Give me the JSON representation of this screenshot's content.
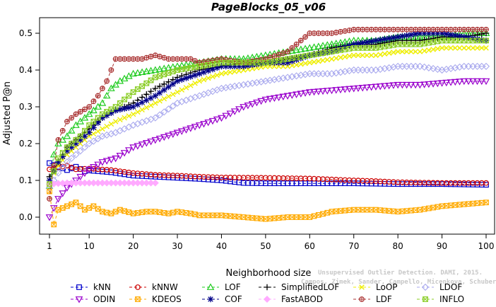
{
  "chart_data": {
    "type": "line",
    "title": "PageBlocks_05_v06",
    "xlabel": "Neighborhood size",
    "ylabel": "Adjusted P@n",
    "xlim": [
      1,
      100
    ],
    "ylim": [
      -0.04,
      0.54
    ],
    "xticks": [
      1,
      10,
      20,
      30,
      40,
      50,
      60,
      70,
      80,
      90,
      100
    ],
    "yticks": [
      0.0,
      0.1,
      0.2,
      0.3,
      0.4,
      0.5
    ],
    "ytick_labels": [
      "0.0",
      "0.1",
      "0.2",
      "0.3",
      "0.4",
      "0.5"
    ],
    "grid": false,
    "legend_position": "bottom",
    "series": [
      {
        "name": "kNN",
        "color": "#0000cc",
        "marker": "square",
        "dash": "4,3",
        "points": [
          [
            1,
            0.147
          ],
          [
            3,
            0.137
          ],
          [
            5,
            0.128
          ],
          [
            7,
            0.137
          ],
          [
            9,
            0.125
          ],
          [
            10,
            0.127
          ],
          [
            12,
            0.125
          ],
          [
            15,
            0.122
          ],
          [
            20,
            0.113
          ],
          [
            25,
            0.11
          ],
          [
            30,
            0.107
          ],
          [
            35,
            0.104
          ],
          [
            40,
            0.1
          ],
          [
            45,
            0.093
          ],
          [
            50,
            0.092
          ],
          [
            60,
            0.092
          ],
          [
            70,
            0.092
          ],
          [
            80,
            0.09
          ],
          [
            90,
            0.09
          ],
          [
            100,
            0.088
          ]
        ]
      },
      {
        "name": "kNNW",
        "color": "#cc0000",
        "marker": "circle",
        "dash": "4,3",
        "points": [
          [
            1,
            0.13
          ],
          [
            3,
            0.135
          ],
          [
            5,
            0.14
          ],
          [
            7,
            0.13
          ],
          [
            10,
            0.132
          ],
          [
            15,
            0.128
          ],
          [
            20,
            0.12
          ],
          [
            25,
            0.115
          ],
          [
            30,
            0.113
          ],
          [
            35,
            0.11
          ],
          [
            40,
            0.108
          ],
          [
            50,
            0.107
          ],
          [
            60,
            0.105
          ],
          [
            70,
            0.1
          ],
          [
            75,
            0.098
          ],
          [
            80,
            0.095
          ],
          [
            90,
            0.093
          ],
          [
            100,
            0.093
          ]
        ]
      },
      {
        "name": "LOF",
        "color": "#22cc22",
        "marker": "triangle-up",
        "dash": "4,3",
        "points": [
          [
            1,
            0.085
          ],
          [
            2,
            0.17
          ],
          [
            3,
            0.2
          ],
          [
            5,
            0.22
          ],
          [
            7,
            0.25
          ],
          [
            10,
            0.28
          ],
          [
            13,
            0.31
          ],
          [
            15,
            0.35
          ],
          [
            17,
            0.37
          ],
          [
            20,
            0.39
          ],
          [
            25,
            0.4
          ],
          [
            30,
            0.41
          ],
          [
            35,
            0.42
          ],
          [
            40,
            0.43
          ],
          [
            45,
            0.43
          ],
          [
            50,
            0.44
          ],
          [
            55,
            0.45
          ],
          [
            60,
            0.46
          ],
          [
            65,
            0.47
          ],
          [
            70,
            0.48
          ],
          [
            75,
            0.48
          ],
          [
            80,
            0.49
          ],
          [
            85,
            0.49
          ],
          [
            90,
            0.49
          ],
          [
            95,
            0.5
          ],
          [
            100,
            0.5
          ]
        ]
      },
      {
        "name": "SimplifiedLOF",
        "color": "#000000",
        "marker": "plus",
        "dash": "4,3",
        "points": [
          [
            1,
            0.11
          ],
          [
            3,
            0.15
          ],
          [
            5,
            0.19
          ],
          [
            8,
            0.22
          ],
          [
            10,
            0.24
          ],
          [
            13,
            0.27
          ],
          [
            16,
            0.29
          ],
          [
            20,
            0.31
          ],
          [
            25,
            0.35
          ],
          [
            30,
            0.38
          ],
          [
            35,
            0.4
          ],
          [
            40,
            0.41
          ],
          [
            45,
            0.42
          ],
          [
            50,
            0.42
          ],
          [
            55,
            0.43
          ],
          [
            60,
            0.44
          ],
          [
            65,
            0.46
          ],
          [
            70,
            0.47
          ],
          [
            75,
            0.47
          ],
          [
            80,
            0.48
          ],
          [
            85,
            0.48
          ],
          [
            90,
            0.49
          ],
          [
            95,
            0.49
          ],
          [
            100,
            0.5
          ]
        ]
      },
      {
        "name": "LoOP",
        "color": "#eeee00",
        "marker": "x",
        "dash": "4,3",
        "points": [
          [
            1,
            0.1
          ],
          [
            3,
            0.14
          ],
          [
            5,
            0.17
          ],
          [
            8,
            0.2
          ],
          [
            10,
            0.22
          ],
          [
            13,
            0.24
          ],
          [
            16,
            0.26
          ],
          [
            20,
            0.28
          ],
          [
            25,
            0.31
          ],
          [
            30,
            0.34
          ],
          [
            35,
            0.37
          ],
          [
            40,
            0.39
          ],
          [
            45,
            0.4
          ],
          [
            50,
            0.41
          ],
          [
            55,
            0.41
          ],
          [
            60,
            0.42
          ],
          [
            65,
            0.43
          ],
          [
            70,
            0.44
          ],
          [
            75,
            0.44
          ],
          [
            80,
            0.45
          ],
          [
            85,
            0.45
          ],
          [
            90,
            0.46
          ],
          [
            95,
            0.46
          ],
          [
            100,
            0.46
          ]
        ]
      },
      {
        "name": "LDOF",
        "color": "#aaaaee",
        "marker": "diamond",
        "dash": "4,3",
        "points": [
          [
            1,
            0.08
          ],
          [
            3,
            0.12
          ],
          [
            5,
            0.15
          ],
          [
            8,
            0.18
          ],
          [
            10,
            0.2
          ],
          [
            13,
            0.22
          ],
          [
            16,
            0.23
          ],
          [
            20,
            0.25
          ],
          [
            25,
            0.27
          ],
          [
            30,
            0.31
          ],
          [
            35,
            0.33
          ],
          [
            40,
            0.35
          ],
          [
            45,
            0.36
          ],
          [
            50,
            0.37
          ],
          [
            55,
            0.38
          ],
          [
            60,
            0.39
          ],
          [
            65,
            0.39
          ],
          [
            70,
            0.4
          ],
          [
            75,
            0.4
          ],
          [
            80,
            0.41
          ],
          [
            85,
            0.41
          ],
          [
            90,
            0.4
          ],
          [
            95,
            0.41
          ],
          [
            100,
            0.41
          ]
        ]
      },
      {
        "name": "ODIN",
        "color": "#9900cc",
        "marker": "triangle-down",
        "dash": "4,3",
        "points": [
          [
            1,
            0.0
          ],
          [
            3,
            0.05
          ],
          [
            5,
            0.08
          ],
          [
            7,
            0.1
          ],
          [
            10,
            0.13
          ],
          [
            13,
            0.15
          ],
          [
            16,
            0.16
          ],
          [
            20,
            0.19
          ],
          [
            25,
            0.21
          ],
          [
            30,
            0.23
          ],
          [
            35,
            0.25
          ],
          [
            40,
            0.27
          ],
          [
            45,
            0.3
          ],
          [
            50,
            0.32
          ],
          [
            55,
            0.33
          ],
          [
            60,
            0.34
          ],
          [
            65,
            0.345
          ],
          [
            70,
            0.35
          ],
          [
            75,
            0.355
          ],
          [
            80,
            0.36
          ],
          [
            85,
            0.36
          ],
          [
            90,
            0.365
          ],
          [
            95,
            0.37
          ],
          [
            100,
            0.37
          ]
        ]
      },
      {
        "name": "KDEOS",
        "color": "#ffaa00",
        "marker": "square-x",
        "dash": "4,3",
        "points": [
          [
            1,
            0.07
          ],
          [
            2,
            -0.02
          ],
          [
            3,
            0.02
          ],
          [
            5,
            0.03
          ],
          [
            7,
            0.04
          ],
          [
            9,
            0.02
          ],
          [
            11,
            0.03
          ],
          [
            13,
            0.015
          ],
          [
            15,
            0.01
          ],
          [
            17,
            0.02
          ],
          [
            20,
            0.01
          ],
          [
            23,
            0.015
          ],
          [
            25,
            0.015
          ],
          [
            28,
            0.01
          ],
          [
            30,
            0.015
          ],
          [
            33,
            0.01
          ],
          [
            35,
            0.005
          ],
          [
            38,
            0.005
          ],
          [
            40,
            0.005
          ],
          [
            45,
            0.0
          ],
          [
            50,
            -0.005
          ],
          [
            55,
            0.0
          ],
          [
            60,
            0.0
          ],
          [
            65,
            0.015
          ],
          [
            70,
            0.02
          ],
          [
            75,
            0.02
          ],
          [
            80,
            0.015
          ],
          [
            85,
            0.02
          ],
          [
            90,
            0.03
          ],
          [
            95,
            0.035
          ],
          [
            100,
            0.04
          ]
        ]
      },
      {
        "name": "COF",
        "color": "#000088",
        "marker": "star",
        "dash": "4,3",
        "points": [
          [
            1,
            0.1
          ],
          [
            3,
            0.15
          ],
          [
            5,
            0.18
          ],
          [
            8,
            0.21
          ],
          [
            10,
            0.23
          ],
          [
            13,
            0.27
          ],
          [
            16,
            0.29
          ],
          [
            20,
            0.3
          ],
          [
            25,
            0.33
          ],
          [
            30,
            0.37
          ],
          [
            35,
            0.39
          ],
          [
            40,
            0.41
          ],
          [
            45,
            0.41
          ],
          [
            50,
            0.42
          ],
          [
            55,
            0.42
          ],
          [
            60,
            0.44
          ],
          [
            65,
            0.45
          ],
          [
            70,
            0.47
          ],
          [
            75,
            0.48
          ],
          [
            80,
            0.49
          ],
          [
            85,
            0.5
          ],
          [
            90,
            0.5
          ],
          [
            95,
            0.49
          ],
          [
            100,
            0.48
          ]
        ]
      },
      {
        "name": "FastABOD",
        "color": "#ffaaff",
        "marker": "diamond-filled",
        "dash": "4,3",
        "points": [
          [
            1,
            0.09
          ],
          [
            5,
            0.093
          ],
          [
            10,
            0.093
          ],
          [
            15,
            0.093
          ],
          [
            20,
            0.093
          ],
          [
            25,
            0.093
          ]
        ]
      },
      {
        "name": "LDF",
        "color": "#aa3333",
        "marker": "circle-plus",
        "dash": "4,3",
        "points": [
          [
            1,
            0.05
          ],
          [
            2,
            0.14
          ],
          [
            3,
            0.21
          ],
          [
            5,
            0.26
          ],
          [
            7,
            0.28
          ],
          [
            10,
            0.3
          ],
          [
            12,
            0.33
          ],
          [
            14,
            0.37
          ],
          [
            16,
            0.43
          ],
          [
            18,
            0.43
          ],
          [
            20,
            0.43
          ],
          [
            22,
            0.43
          ],
          [
            25,
            0.44
          ],
          [
            28,
            0.43
          ],
          [
            30,
            0.43
          ],
          [
            33,
            0.43
          ],
          [
            35,
            0.42
          ],
          [
            40,
            0.43
          ],
          [
            45,
            0.42
          ],
          [
            50,
            0.43
          ],
          [
            55,
            0.45
          ],
          [
            60,
            0.5
          ],
          [
            65,
            0.5
          ],
          [
            70,
            0.51
          ],
          [
            75,
            0.51
          ],
          [
            80,
            0.51
          ],
          [
            85,
            0.51
          ],
          [
            90,
            0.51
          ],
          [
            95,
            0.51
          ],
          [
            100,
            0.51
          ]
        ]
      },
      {
        "name": "INFLO",
        "color": "#88cc22",
        "marker": "square-x",
        "dash": "4,3",
        "points": [
          [
            1,
            0.09
          ],
          [
            3,
            0.16
          ],
          [
            5,
            0.19
          ],
          [
            8,
            0.22
          ],
          [
            10,
            0.25
          ],
          [
            13,
            0.28
          ],
          [
            16,
            0.3
          ],
          [
            20,
            0.34
          ],
          [
            25,
            0.38
          ],
          [
            30,
            0.4
          ],
          [
            35,
            0.41
          ],
          [
            40,
            0.42
          ],
          [
            45,
            0.42
          ],
          [
            50,
            0.42
          ],
          [
            55,
            0.43
          ],
          [
            60,
            0.44
          ],
          [
            65,
            0.45
          ],
          [
            70,
            0.46
          ],
          [
            75,
            0.46
          ],
          [
            80,
            0.47
          ],
          [
            85,
            0.47
          ],
          [
            90,
            0.48
          ],
          [
            95,
            0.48
          ],
          [
            100,
            0.48
          ]
        ]
      }
    ],
    "legend_rows": [
      [
        "kNN",
        "kNNW",
        "LOF",
        "SimplifiedLOF",
        "LoOP",
        "LDOF"
      ],
      [
        "ODIN",
        "KDEOS",
        "COF",
        "FastABOD",
        "LDF",
        "INFLO"
      ]
    ],
    "annotation": {
      "line1": "Unsupervised Outlier Detection. DAMI, 2015.",
      "line2": "Campos, Zimek, Sander, Campello, Micenkova, Schubert, Assent, Houle"
    }
  }
}
